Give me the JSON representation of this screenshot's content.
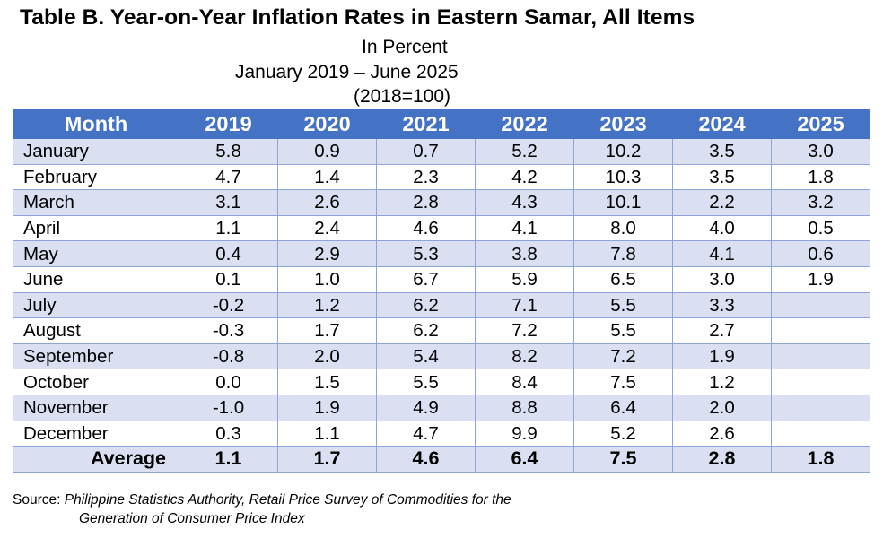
{
  "title": "Table B. Year-on-Year Inflation Rates in Eastern Samar, All Items",
  "subtitle_unit": "In Percent",
  "subtitle_period": "January 2019 – June 2025",
  "subtitle_base": "(2018=100)",
  "table": {
    "header": {
      "month_label": "Month",
      "years": [
        "2019",
        "2020",
        "2021",
        "2022",
        "2023",
        "2024",
        "2025"
      ]
    },
    "rows": [
      {
        "month": "January",
        "values": [
          "5.8",
          "0.9",
          "0.7",
          "5.2",
          "10.2",
          "3.5",
          "3.0"
        ]
      },
      {
        "month": "February",
        "values": [
          "4.7",
          "1.4",
          "2.3",
          "4.2",
          "10.3",
          "3.5",
          "1.8"
        ]
      },
      {
        "month": "March",
        "values": [
          "3.1",
          "2.6",
          "2.8",
          "4.3",
          "10.1",
          "2.2",
          "3.2"
        ]
      },
      {
        "month": "April",
        "values": [
          "1.1",
          "2.4",
          "4.6",
          "4.1",
          "8.0",
          "4.0",
          "0.5"
        ]
      },
      {
        "month": "May",
        "values": [
          "0.4",
          "2.9",
          "5.3",
          "3.8",
          "7.8",
          "4.1",
          "0.6"
        ]
      },
      {
        "month": "June",
        "values": [
          "0.1",
          "1.0",
          "6.7",
          "5.9",
          "6.5",
          "3.0",
          "1.9"
        ]
      },
      {
        "month": "July",
        "values": [
          "-0.2",
          "1.2",
          "6.2",
          "7.1",
          "5.5",
          "3.3",
          ""
        ]
      },
      {
        "month": "August",
        "values": [
          "-0.3",
          "1.7",
          "6.2",
          "7.2",
          "5.5",
          "2.7",
          ""
        ]
      },
      {
        "month": "September",
        "values": [
          "-0.8",
          "2.0",
          "5.4",
          "8.2",
          "7.2",
          "1.9",
          ""
        ]
      },
      {
        "month": "October",
        "values": [
          "0.0",
          "1.5",
          "5.5",
          "8.4",
          "7.5",
          "1.2",
          ""
        ]
      },
      {
        "month": "November",
        "values": [
          "-1.0",
          "1.9",
          "4.9",
          "8.8",
          "6.4",
          "2.0",
          ""
        ]
      },
      {
        "month": "December",
        "values": [
          "0.3",
          "1.1",
          "4.7",
          "9.9",
          "5.2",
          "2.6",
          ""
        ]
      }
    ],
    "average": {
      "label": "Average",
      "values": [
        "1.1",
        "1.7",
        "4.6",
        "6.4",
        "7.5",
        "2.8",
        "1.8"
      ]
    }
  },
  "source": {
    "label": "Source:",
    "text_line1": "Philippine Statistics Authority, Retail Price Survey of Commodities for the",
    "text_line2": "Generation of Consumer Price Index"
  },
  "colors": {
    "header_bg": "#4472c4",
    "band_bg": "#dae0f2",
    "border": "#8ea4d8"
  }
}
